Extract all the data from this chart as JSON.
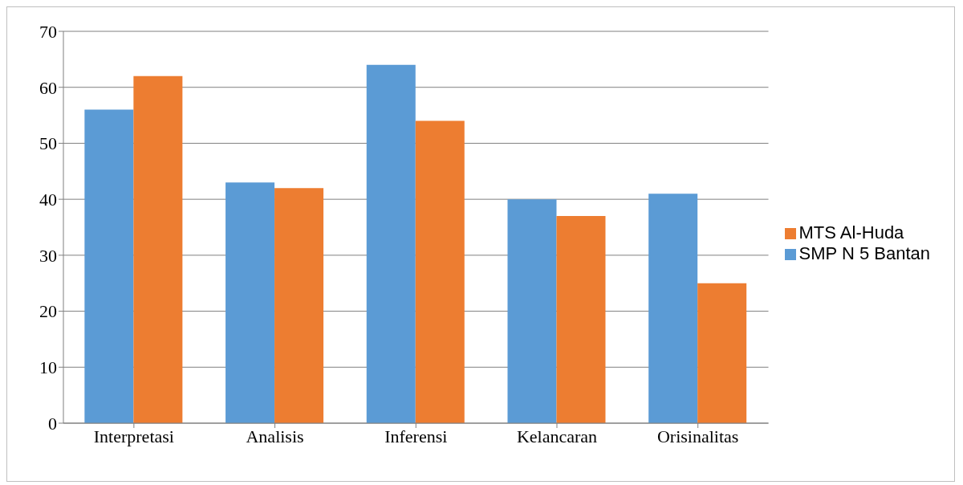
{
  "chart_data": {
    "type": "bar",
    "categories": [
      "Interpretasi",
      "Analisis",
      "Inferensi",
      "Kelancaran",
      "Orisinalitas"
    ],
    "series": [
      {
        "name": "SMP N 5 Bantan",
        "color": "#5b9bd5",
        "values": [
          56,
          43,
          64,
          40,
          41
        ]
      },
      {
        "name": "MTS Al-Huda",
        "color": "#ed7d31",
        "values": [
          62,
          42,
          54,
          37,
          25
        ]
      }
    ],
    "ylim": [
      0,
      70
    ],
    "yticks": [
      0,
      10,
      20,
      30,
      40,
      50,
      60,
      70
    ],
    "grid": "y",
    "legend": "right"
  }
}
